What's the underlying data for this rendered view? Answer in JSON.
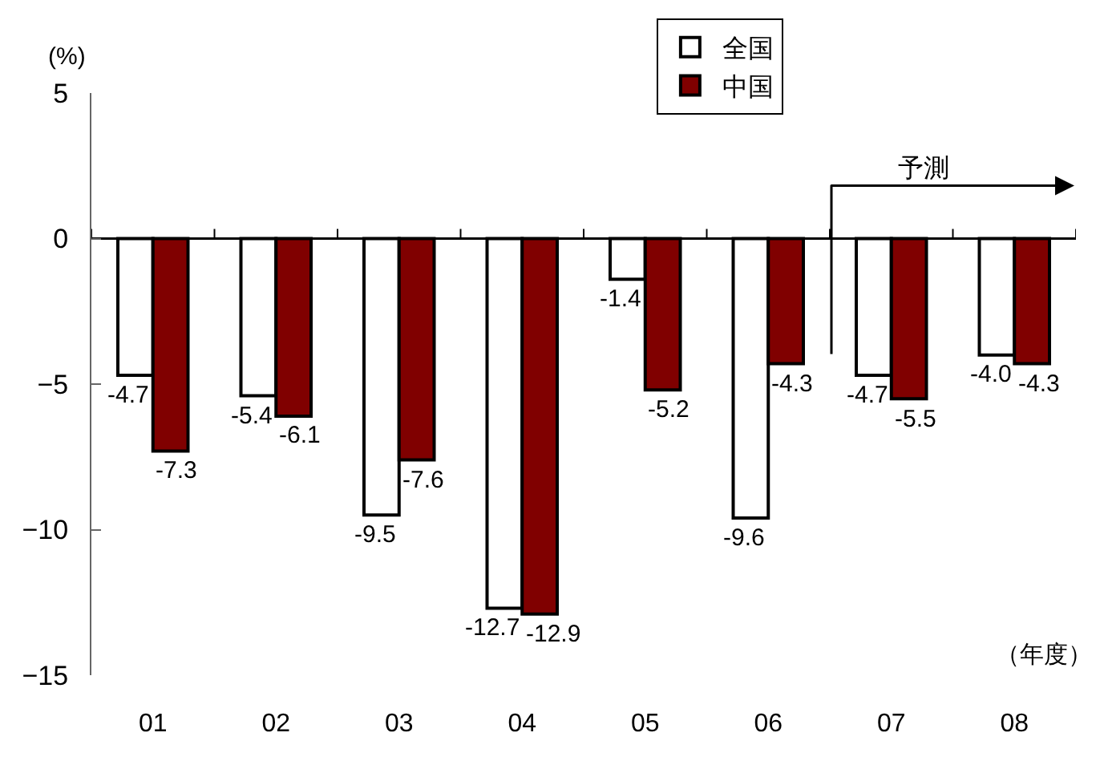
{
  "chart_data": {
    "type": "bar",
    "categories": [
      "01",
      "02",
      "03",
      "04",
      "05",
      "06",
      "07",
      "08"
    ],
    "series": [
      {
        "name": "全国",
        "color": "#ffffff",
        "values": [
          -4.7,
          -5.4,
          -9.5,
          -12.7,
          -1.4,
          -9.6,
          -4.7,
          -4.0
        ],
        "value_labels": [
          "-4.7",
          "-5.4",
          "-9.5",
          "-12.7",
          "-1.4",
          "-9.6",
          "-4.7",
          "-4.0"
        ]
      },
      {
        "name": "中国",
        "color": "#800000",
        "values": [
          -7.3,
          -6.1,
          -7.6,
          -12.9,
          -5.2,
          -4.3,
          -5.5,
          -4.3
        ],
        "value_labels": [
          "-7.3",
          "-6.1",
          "-7.6",
          "-12.9",
          "-5.2",
          "-4.3",
          "-5.5",
          "-4.3"
        ]
      }
    ],
    "ylabel": "(%)",
    "xlabel": "（年度）",
    "ylim": [
      -15,
      5
    ],
    "yticks": [
      -15,
      -10,
      -5,
      0,
      5
    ],
    "legend": "top",
    "annotations": [
      "予測"
    ]
  }
}
